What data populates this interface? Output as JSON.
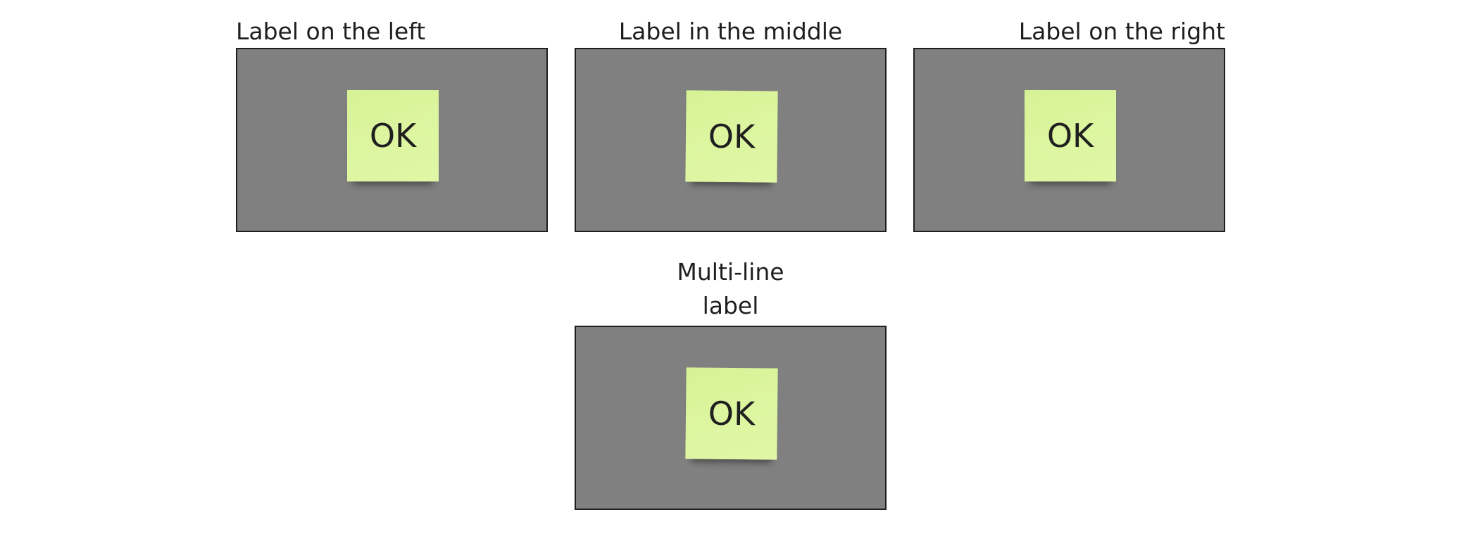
{
  "frames": [
    {
      "label": "Label on the left",
      "sticky_text": "OK"
    },
    {
      "label": "Label in the middle",
      "sticky_text": "OK"
    },
    {
      "label": "Label on the right",
      "sticky_text": "OK"
    },
    {
      "label_lines": [
        "Multi-line",
        "label"
      ],
      "sticky_text": "OK"
    }
  ],
  "colors": {
    "frame_fill": "#808080",
    "frame_border": "#1e1e1e",
    "sticky_fill": "#dcf59f",
    "text": "#1f1f1f"
  }
}
